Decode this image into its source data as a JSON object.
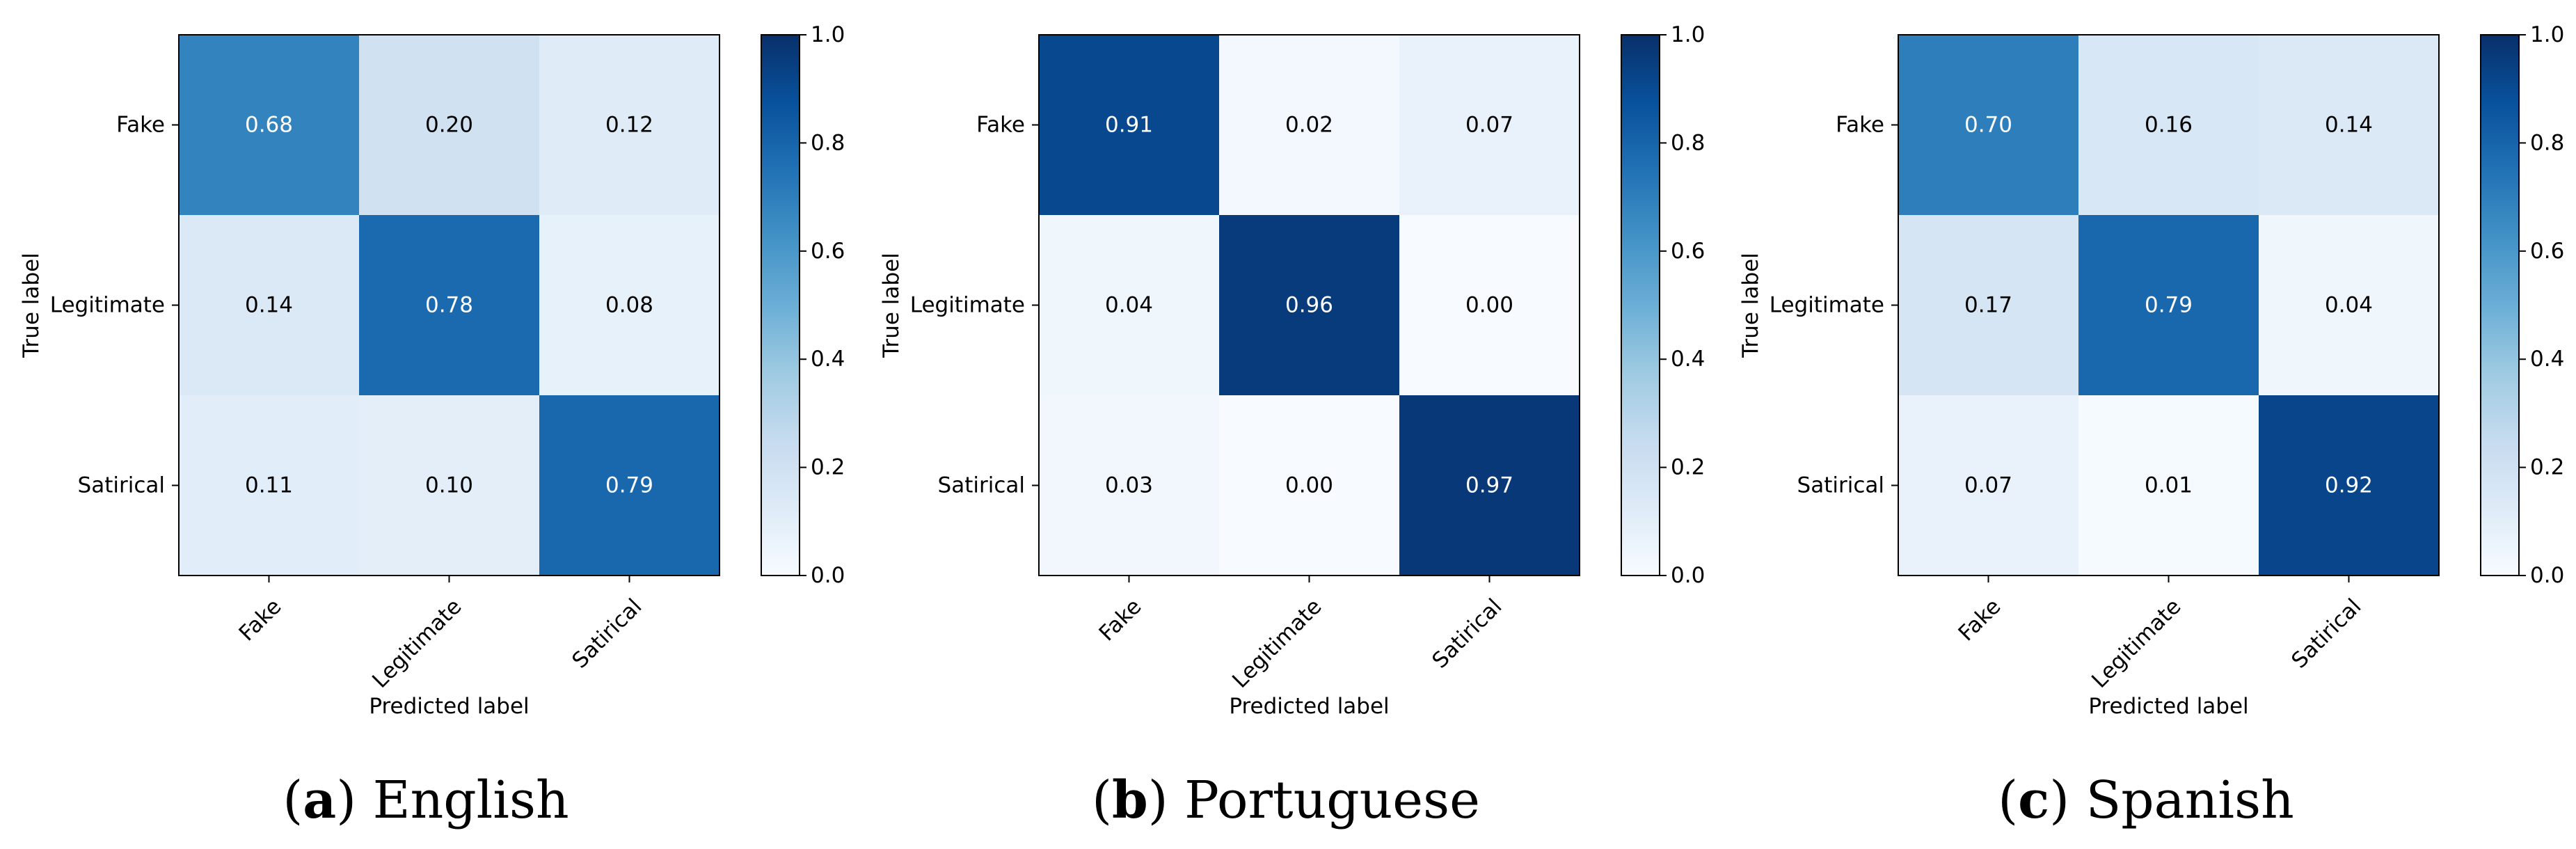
{
  "chart_data": [
    {
      "type": "heatmap",
      "caption_letter": "a",
      "caption_text": "English",
      "xlabel": "Predicted label",
      "ylabel": "True label",
      "x_categories": [
        "Fake",
        "Legitimate",
        "Satirical"
      ],
      "y_categories": [
        "Fake",
        "Legitimate",
        "Satirical"
      ],
      "values": [
        [
          0.68,
          0.2,
          0.12
        ],
        [
          0.14,
          0.78,
          0.08
        ],
        [
          0.11,
          0.1,
          0.79
        ]
      ],
      "value_labels": [
        [
          "0.68",
          "0.20",
          "0.12"
        ],
        [
          "0.14",
          "0.78",
          "0.08"
        ],
        [
          "0.11",
          "0.10",
          "0.79"
        ]
      ],
      "colorbar": {
        "range": [
          0.0,
          1.0
        ],
        "ticks": [
          "0.0",
          "0.2",
          "0.4",
          "0.6",
          "0.8",
          "1.0"
        ],
        "colormap": "Blues"
      }
    },
    {
      "type": "heatmap",
      "caption_letter": "b",
      "caption_text": "Portuguese",
      "xlabel": "Predicted label",
      "ylabel": "True label",
      "x_categories": [
        "Fake",
        "Legitimate",
        "Satirical"
      ],
      "y_categories": [
        "Fake",
        "Legitimate",
        "Satirical"
      ],
      "values": [
        [
          0.91,
          0.02,
          0.07
        ],
        [
          0.04,
          0.96,
          0.0
        ],
        [
          0.03,
          0.0,
          0.97
        ]
      ],
      "value_labels": [
        [
          "0.91",
          "0.02",
          "0.07"
        ],
        [
          "0.04",
          "0.96",
          "0.00"
        ],
        [
          "0.03",
          "0.00",
          "0.97"
        ]
      ],
      "colorbar": {
        "range": [
          0.0,
          1.0
        ],
        "ticks": [
          "0.0",
          "0.2",
          "0.4",
          "0.6",
          "0.8",
          "1.0"
        ],
        "colormap": "Blues"
      }
    },
    {
      "type": "heatmap",
      "caption_letter": "c",
      "caption_text": "Spanish",
      "xlabel": "Predicted label",
      "ylabel": "True label",
      "x_categories": [
        "Fake",
        "Legitimate",
        "Satirical"
      ],
      "y_categories": [
        "Fake",
        "Legitimate",
        "Satirical"
      ],
      "values": [
        [
          0.7,
          0.16,
          0.14
        ],
        [
          0.17,
          0.79,
          0.04
        ],
        [
          0.07,
          0.01,
          0.92
        ]
      ],
      "value_labels": [
        [
          "0.70",
          "0.16",
          "0.14"
        ],
        [
          "0.17",
          "0.79",
          "0.04"
        ],
        [
          "0.07",
          "0.01",
          "0.92"
        ]
      ],
      "colorbar": {
        "range": [
          0.0,
          1.0
        ],
        "ticks": [
          "0.0",
          "0.2",
          "0.4",
          "0.6",
          "0.8",
          "1.0"
        ],
        "colormap": "Blues"
      }
    }
  ]
}
